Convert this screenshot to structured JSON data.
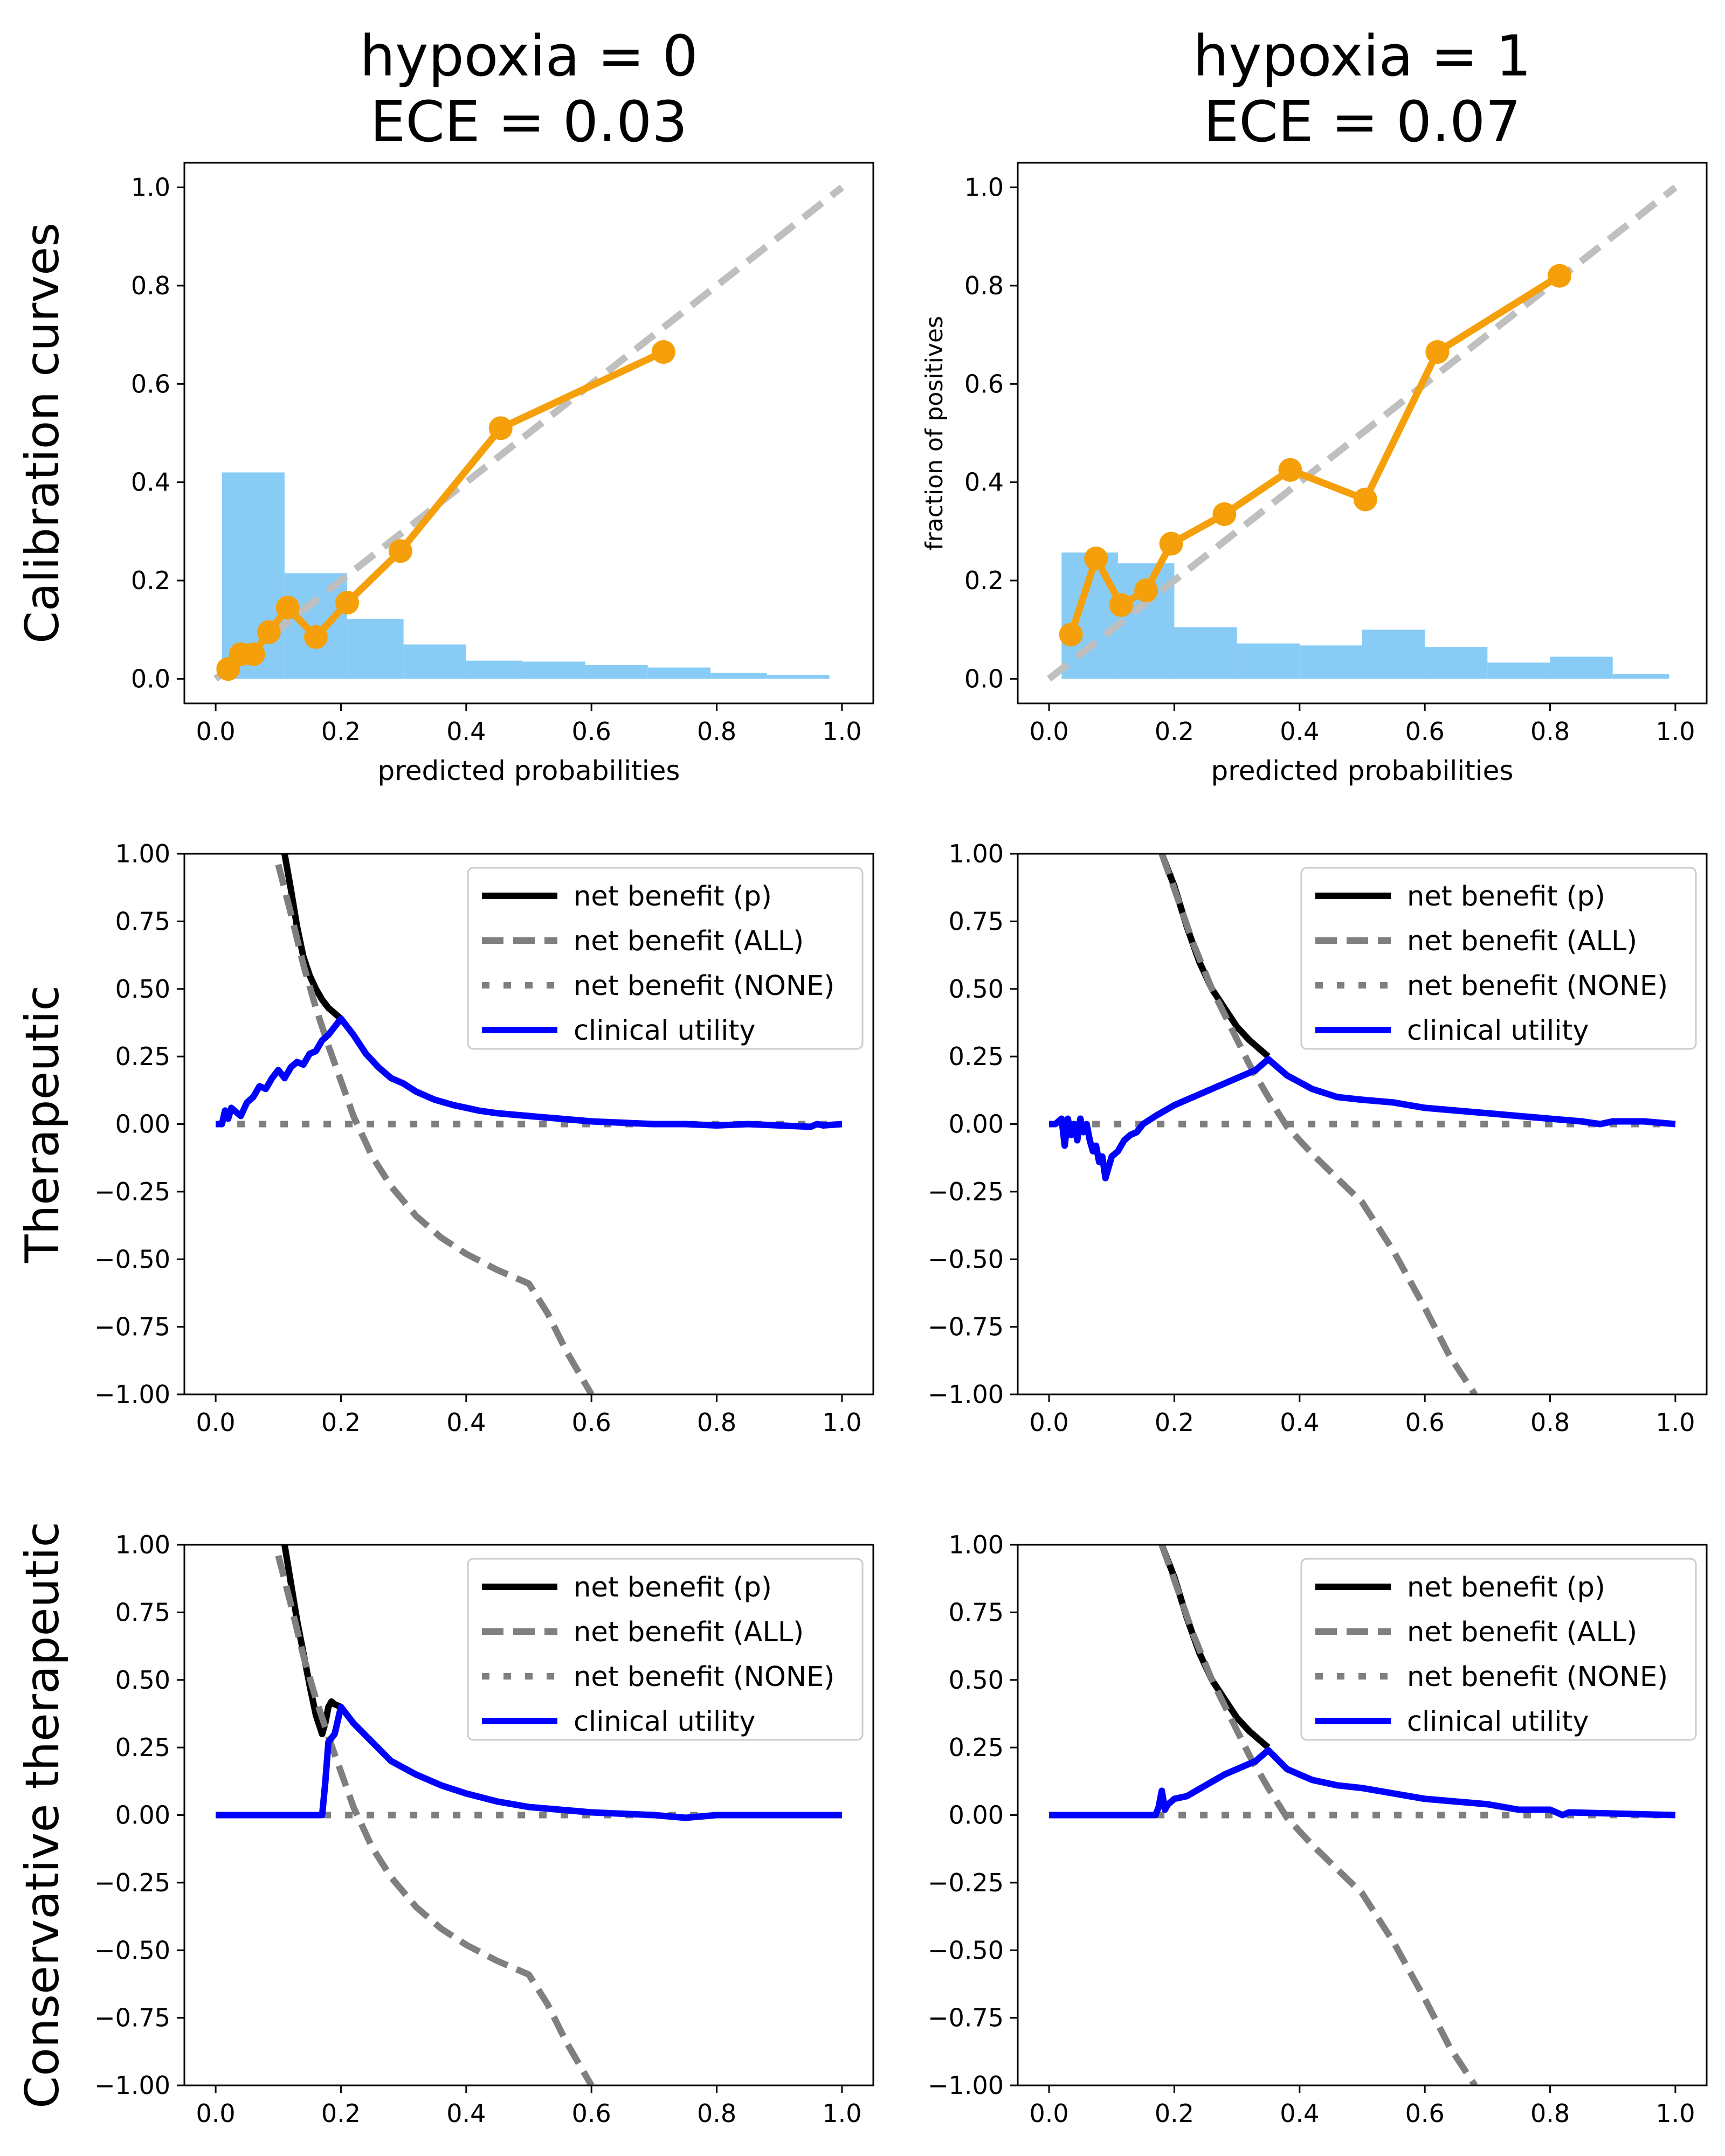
{
  "chart_data": [
    {
      "type": "line",
      "panel": "calibration",
      "title_lines": [
        "hypoxia = 0",
        "ECE = 0.03"
      ],
      "row_label": "Calibration curves",
      "xlabel": "predicted probabilities",
      "ylabel": "",
      "xlim": [
        -0.05,
        1.05
      ],
      "ylim": [
        -0.05,
        1.05
      ],
      "xticks": [
        "0.0",
        "0.2",
        "0.4",
        "0.6",
        "0.8",
        "1.0"
      ],
      "yticks": [
        "0.0",
        "0.2",
        "0.4",
        "0.6",
        "0.8",
        "1.0"
      ],
      "diagonal": {
        "x": [
          0,
          1
        ],
        "y": [
          0,
          1
        ],
        "color": "#bfbfbf"
      },
      "histogram": {
        "color": "#88ccf5",
        "bins": [
          [
            0.01,
            0.11,
            0.42
          ],
          [
            0.11,
            0.21,
            0.215
          ],
          [
            0.21,
            0.3,
            0.122
          ],
          [
            0.3,
            0.4,
            0.07
          ],
          [
            0.4,
            0.49,
            0.037
          ],
          [
            0.49,
            0.59,
            0.035
          ],
          [
            0.59,
            0.69,
            0.028
          ],
          [
            0.69,
            0.79,
            0.023
          ],
          [
            0.79,
            0.88,
            0.012
          ],
          [
            0.88,
            0.98,
            0.008
          ]
        ]
      },
      "series": [
        {
          "name": "calibration",
          "color": "#f5a00a",
          "x": [
            0.02,
            0.04,
            0.06,
            0.085,
            0.115,
            0.16,
            0.21,
            0.295,
            0.455,
            0.715
          ],
          "y": [
            0.02,
            0.05,
            0.05,
            0.095,
            0.145,
            0.085,
            0.155,
            0.26,
            0.51,
            0.665
          ]
        }
      ]
    },
    {
      "type": "line",
      "panel": "calibration",
      "title_lines": [
        "hypoxia = 1",
        "ECE = 0.07"
      ],
      "xlabel": "predicted probabilities",
      "ylabel": "fraction of positives",
      "xlim": [
        -0.05,
        1.05
      ],
      "ylim": [
        -0.05,
        1.05
      ],
      "xticks": [
        "0.0",
        "0.2",
        "0.4",
        "0.6",
        "0.8",
        "1.0"
      ],
      "yticks": [
        "0.0",
        "0.2",
        "0.4",
        "0.6",
        "0.8",
        "1.0"
      ],
      "diagonal": {
        "x": [
          0,
          1
        ],
        "y": [
          0,
          1
        ],
        "color": "#bfbfbf"
      },
      "histogram": {
        "color": "#88ccf5",
        "bins": [
          [
            0.02,
            0.11,
            0.257
          ],
          [
            0.11,
            0.2,
            0.235
          ],
          [
            0.2,
            0.3,
            0.105
          ],
          [
            0.3,
            0.4,
            0.072
          ],
          [
            0.4,
            0.5,
            0.068
          ],
          [
            0.5,
            0.6,
            0.1
          ],
          [
            0.6,
            0.7,
            0.065
          ],
          [
            0.7,
            0.8,
            0.033
          ],
          [
            0.8,
            0.9,
            0.045
          ],
          [
            0.9,
            0.99,
            0.01
          ]
        ]
      },
      "series": [
        {
          "name": "calibration",
          "color": "#f5a00a",
          "x": [
            0.035,
            0.075,
            0.115,
            0.155,
            0.195,
            0.28,
            0.385,
            0.505,
            0.62,
            0.815
          ],
          "y": [
            0.09,
            0.245,
            0.15,
            0.18,
            0.275,
            0.335,
            0.425,
            0.365,
            0.665,
            0.82
          ]
        }
      ]
    },
    {
      "type": "line",
      "panel": "decision-curve",
      "row_label": "Therapeutic",
      "xlim": [
        -0.05,
        1.05
      ],
      "ylim": [
        -1.0,
        1.0
      ],
      "xticks": [
        "0.0",
        "0.2",
        "0.4",
        "0.6",
        "0.8",
        "1.0"
      ],
      "yticks": [
        "1.00",
        "0.75",
        "0.50",
        "0.25",
        "0.00",
        "−0.25",
        "−0.50",
        "−0.75",
        "−1.00"
      ],
      "legend": [
        "net benefit (p)",
        "net benefit (ALL)",
        "net benefit (NONE)",
        "clinical utility"
      ],
      "series": [
        {
          "name": "net benefit (ALL)",
          "color": "#7f7f7f",
          "style": "dashed",
          "x": [
            0.1,
            0.12,
            0.14,
            0.16,
            0.18,
            0.2,
            0.22,
            0.25,
            0.28,
            0.32,
            0.36,
            0.4,
            0.45,
            0.5,
            0.53,
            0.56,
            0.6
          ],
          "y": [
            0.96,
            0.78,
            0.59,
            0.43,
            0.29,
            0.16,
            0.03,
            -0.12,
            -0.23,
            -0.34,
            -0.42,
            -0.48,
            -0.54,
            -0.59,
            -0.7,
            -0.84,
            -1.0
          ]
        },
        {
          "name": "net benefit (p)",
          "color": "#000000",
          "style": "solid",
          "x": [
            0.11,
            0.12,
            0.13,
            0.14,
            0.15,
            0.16,
            0.17,
            0.18,
            0.19,
            0.2
          ],
          "y": [
            1.0,
            0.87,
            0.73,
            0.62,
            0.55,
            0.5,
            0.46,
            0.43,
            0.41,
            0.39
          ]
        },
        {
          "name": "net benefit (NONE)",
          "color": "#7f7f7f",
          "style": "dotted",
          "x": [
            0.0,
            1.0
          ],
          "y": [
            0.0,
            0.0
          ]
        },
        {
          "name": "clinical utility",
          "color": "#0000ff",
          "style": "solid",
          "x": [
            0.0,
            0.01,
            0.015,
            0.02,
            0.025,
            0.03,
            0.04,
            0.05,
            0.06,
            0.07,
            0.08,
            0.09,
            0.1,
            0.11,
            0.12,
            0.13,
            0.14,
            0.15,
            0.16,
            0.17,
            0.18,
            0.19,
            0.2,
            0.22,
            0.24,
            0.26,
            0.28,
            0.3,
            0.32,
            0.35,
            0.38,
            0.42,
            0.45,
            0.5,
            0.55,
            0.6,
            0.65,
            0.7,
            0.75,
            0.8,
            0.85,
            0.9,
            0.95,
            0.96,
            0.97,
            1.0
          ],
          "y": [
            0.0,
            0.0,
            0.05,
            0.02,
            0.06,
            0.05,
            0.03,
            0.08,
            0.1,
            0.14,
            0.13,
            0.17,
            0.2,
            0.17,
            0.21,
            0.23,
            0.22,
            0.26,
            0.27,
            0.31,
            0.33,
            0.36,
            0.39,
            0.33,
            0.26,
            0.21,
            0.17,
            0.15,
            0.12,
            0.09,
            0.07,
            0.05,
            0.04,
            0.03,
            0.02,
            0.01,
            0.005,
            0.0,
            0.0,
            -0.005,
            0.0,
            -0.005,
            -0.01,
            0.0,
            -0.005,
            0.0
          ]
        }
      ]
    },
    {
      "type": "line",
      "panel": "decision-curve",
      "xlim": [
        -0.05,
        1.05
      ],
      "ylim": [
        -1.0,
        1.0
      ],
      "xticks": [
        "0.0",
        "0.2",
        "0.4",
        "0.6",
        "0.8",
        "1.0"
      ],
      "yticks": [
        "1.00",
        "0.75",
        "0.50",
        "0.25",
        "0.00",
        "−0.25",
        "−0.50",
        "−0.75",
        "−1.00"
      ],
      "legend": [
        "net benefit (p)",
        "net benefit (ALL)",
        "net benefit (NONE)",
        "clinical utility"
      ],
      "series": [
        {
          "name": "net benefit (ALL)",
          "color": "#7f7f7f",
          "style": "dashed",
          "x": [
            0.18,
            0.2,
            0.23,
            0.26,
            0.29,
            0.32,
            0.35,
            0.38,
            0.42,
            0.46,
            0.5,
            0.55,
            0.6,
            0.64,
            0.68
          ],
          "y": [
            1.0,
            0.87,
            0.67,
            0.5,
            0.36,
            0.22,
            0.1,
            -0.01,
            -0.11,
            -0.2,
            -0.29,
            -0.47,
            -0.68,
            -0.86,
            -1.0
          ]
        },
        {
          "name": "net benefit (p)",
          "color": "#000000",
          "style": "solid",
          "x": [
            0.18,
            0.2,
            0.22,
            0.24,
            0.26,
            0.28,
            0.3,
            0.32,
            0.34,
            0.35
          ],
          "y": [
            1.0,
            0.88,
            0.73,
            0.6,
            0.5,
            0.43,
            0.36,
            0.31,
            0.27,
            0.25
          ]
        },
        {
          "name": "net benefit (NONE)",
          "color": "#7f7f7f",
          "style": "dotted",
          "x": [
            0.0,
            1.0
          ],
          "y": [
            0.0,
            0.0
          ]
        },
        {
          "name": "clinical utility",
          "color": "#0000ff",
          "style": "solid",
          "x": [
            0.0,
            0.01,
            0.02,
            0.025,
            0.03,
            0.035,
            0.04,
            0.045,
            0.05,
            0.055,
            0.06,
            0.065,
            0.07,
            0.075,
            0.08,
            0.085,
            0.09,
            0.1,
            0.11,
            0.12,
            0.13,
            0.14,
            0.15,
            0.17,
            0.2,
            0.25,
            0.3,
            0.33,
            0.35,
            0.38,
            0.42,
            0.46,
            0.5,
            0.55,
            0.6,
            0.65,
            0.7,
            0.75,
            0.8,
            0.85,
            0.88,
            0.9,
            0.95,
            1.0
          ],
          "y": [
            0.0,
            0.0,
            0.02,
            -0.08,
            0.02,
            -0.04,
            0.0,
            -0.06,
            0.02,
            -0.03,
            0.0,
            -0.06,
            -0.1,
            -0.08,
            -0.14,
            -0.12,
            -0.2,
            -0.12,
            -0.1,
            -0.06,
            -0.04,
            -0.03,
            0.0,
            0.03,
            0.07,
            0.12,
            0.17,
            0.2,
            0.24,
            0.18,
            0.13,
            0.1,
            0.09,
            0.08,
            0.06,
            0.05,
            0.04,
            0.03,
            0.02,
            0.01,
            0.0,
            0.01,
            0.01,
            0.0
          ]
        }
      ]
    },
    {
      "type": "line",
      "panel": "decision-curve",
      "row_label": "Conservative therapeutic",
      "xlim": [
        -0.05,
        1.05
      ],
      "ylim": [
        -1.0,
        1.0
      ],
      "xticks": [
        "0.0",
        "0.2",
        "0.4",
        "0.6",
        "0.8",
        "1.0"
      ],
      "yticks": [
        "1.00",
        "0.75",
        "0.50",
        "0.25",
        "0.00",
        "−0.25",
        "−0.50",
        "−0.75",
        "−1.00"
      ],
      "legend": [
        "net benefit (p)",
        "net benefit (ALL)",
        "net benefit (NONE)",
        "clinical utility"
      ],
      "series": [
        {
          "name": "net benefit (ALL)",
          "color": "#7f7f7f",
          "style": "dashed",
          "x": [
            0.1,
            0.12,
            0.14,
            0.16,
            0.18,
            0.2,
            0.22,
            0.25,
            0.28,
            0.32,
            0.36,
            0.4,
            0.45,
            0.5,
            0.53,
            0.56,
            0.6
          ],
          "y": [
            0.96,
            0.78,
            0.59,
            0.43,
            0.29,
            0.16,
            0.03,
            -0.12,
            -0.23,
            -0.34,
            -0.42,
            -0.48,
            -0.54,
            -0.59,
            -0.7,
            -0.84,
            -1.0
          ]
        },
        {
          "name": "net benefit (p)",
          "color": "#000000",
          "style": "solid",
          "x": [
            0.11,
            0.13,
            0.15,
            0.16,
            0.17,
            0.175,
            0.18,
            0.185,
            0.19,
            0.2
          ],
          "y": [
            1.0,
            0.72,
            0.48,
            0.37,
            0.3,
            0.34,
            0.4,
            0.42,
            0.41,
            0.4
          ]
        },
        {
          "name": "net benefit (NONE)",
          "color": "#7f7f7f",
          "style": "dotted",
          "x": [
            0.0,
            1.0
          ],
          "y": [
            0.0,
            0.0
          ]
        },
        {
          "name": "clinical utility",
          "color": "#0000ff",
          "style": "solid",
          "x": [
            0.0,
            0.17,
            0.175,
            0.18,
            0.19,
            0.2,
            0.22,
            0.25,
            0.28,
            0.32,
            0.36,
            0.4,
            0.45,
            0.5,
            0.55,
            0.6,
            0.65,
            0.7,
            0.75,
            0.8,
            0.85,
            1.0
          ],
          "y": [
            0.0,
            0.0,
            0.12,
            0.27,
            0.3,
            0.4,
            0.34,
            0.27,
            0.2,
            0.15,
            0.11,
            0.08,
            0.05,
            0.03,
            0.02,
            0.01,
            0.005,
            0.0,
            -0.01,
            0.0,
            0.0,
            0.0
          ]
        }
      ]
    },
    {
      "type": "line",
      "panel": "decision-curve",
      "xlim": [
        -0.05,
        1.05
      ],
      "ylim": [
        -1.0,
        1.0
      ],
      "xticks": [
        "0.0",
        "0.2",
        "0.4",
        "0.6",
        "0.8",
        "1.0"
      ],
      "yticks": [
        "1.00",
        "0.75",
        "0.50",
        "0.25",
        "0.00",
        "−0.25",
        "−0.50",
        "−0.75",
        "−1.00"
      ],
      "legend": [
        "net benefit (p)",
        "net benefit (ALL)",
        "net benefit (NONE)",
        "clinical utility"
      ],
      "series": [
        {
          "name": "net benefit (ALL)",
          "color": "#7f7f7f",
          "style": "dashed",
          "x": [
            0.18,
            0.2,
            0.23,
            0.26,
            0.29,
            0.32,
            0.35,
            0.38,
            0.42,
            0.46,
            0.5,
            0.55,
            0.6,
            0.64,
            0.68
          ],
          "y": [
            1.0,
            0.87,
            0.67,
            0.5,
            0.36,
            0.22,
            0.1,
            -0.01,
            -0.11,
            -0.2,
            -0.29,
            -0.47,
            -0.68,
            -0.86,
            -1.0
          ]
        },
        {
          "name": "net benefit (p)",
          "color": "#000000",
          "style": "solid",
          "x": [
            0.18,
            0.2,
            0.22,
            0.24,
            0.26,
            0.28,
            0.3,
            0.32,
            0.34,
            0.35
          ],
          "y": [
            1.0,
            0.88,
            0.73,
            0.6,
            0.5,
            0.43,
            0.36,
            0.31,
            0.27,
            0.25
          ]
        },
        {
          "name": "net benefit (NONE)",
          "color": "#7f7f7f",
          "style": "dotted",
          "x": [
            0.0,
            1.0
          ],
          "y": [
            0.0,
            0.0
          ]
        },
        {
          "name": "clinical utility",
          "color": "#0000ff",
          "style": "solid",
          "x": [
            0.0,
            0.17,
            0.175,
            0.18,
            0.185,
            0.19,
            0.2,
            0.22,
            0.25,
            0.28,
            0.3,
            0.33,
            0.35,
            0.38,
            0.42,
            0.46,
            0.5,
            0.55,
            0.6,
            0.65,
            0.7,
            0.75,
            0.8,
            0.82,
            0.83,
            1.0
          ],
          "y": [
            0.0,
            0.0,
            0.03,
            0.09,
            0.02,
            0.04,
            0.06,
            0.07,
            0.11,
            0.15,
            0.17,
            0.2,
            0.24,
            0.17,
            0.13,
            0.11,
            0.1,
            0.08,
            0.06,
            0.05,
            0.04,
            0.02,
            0.02,
            0.0,
            0.01,
            0.0
          ]
        }
      ]
    }
  ]
}
